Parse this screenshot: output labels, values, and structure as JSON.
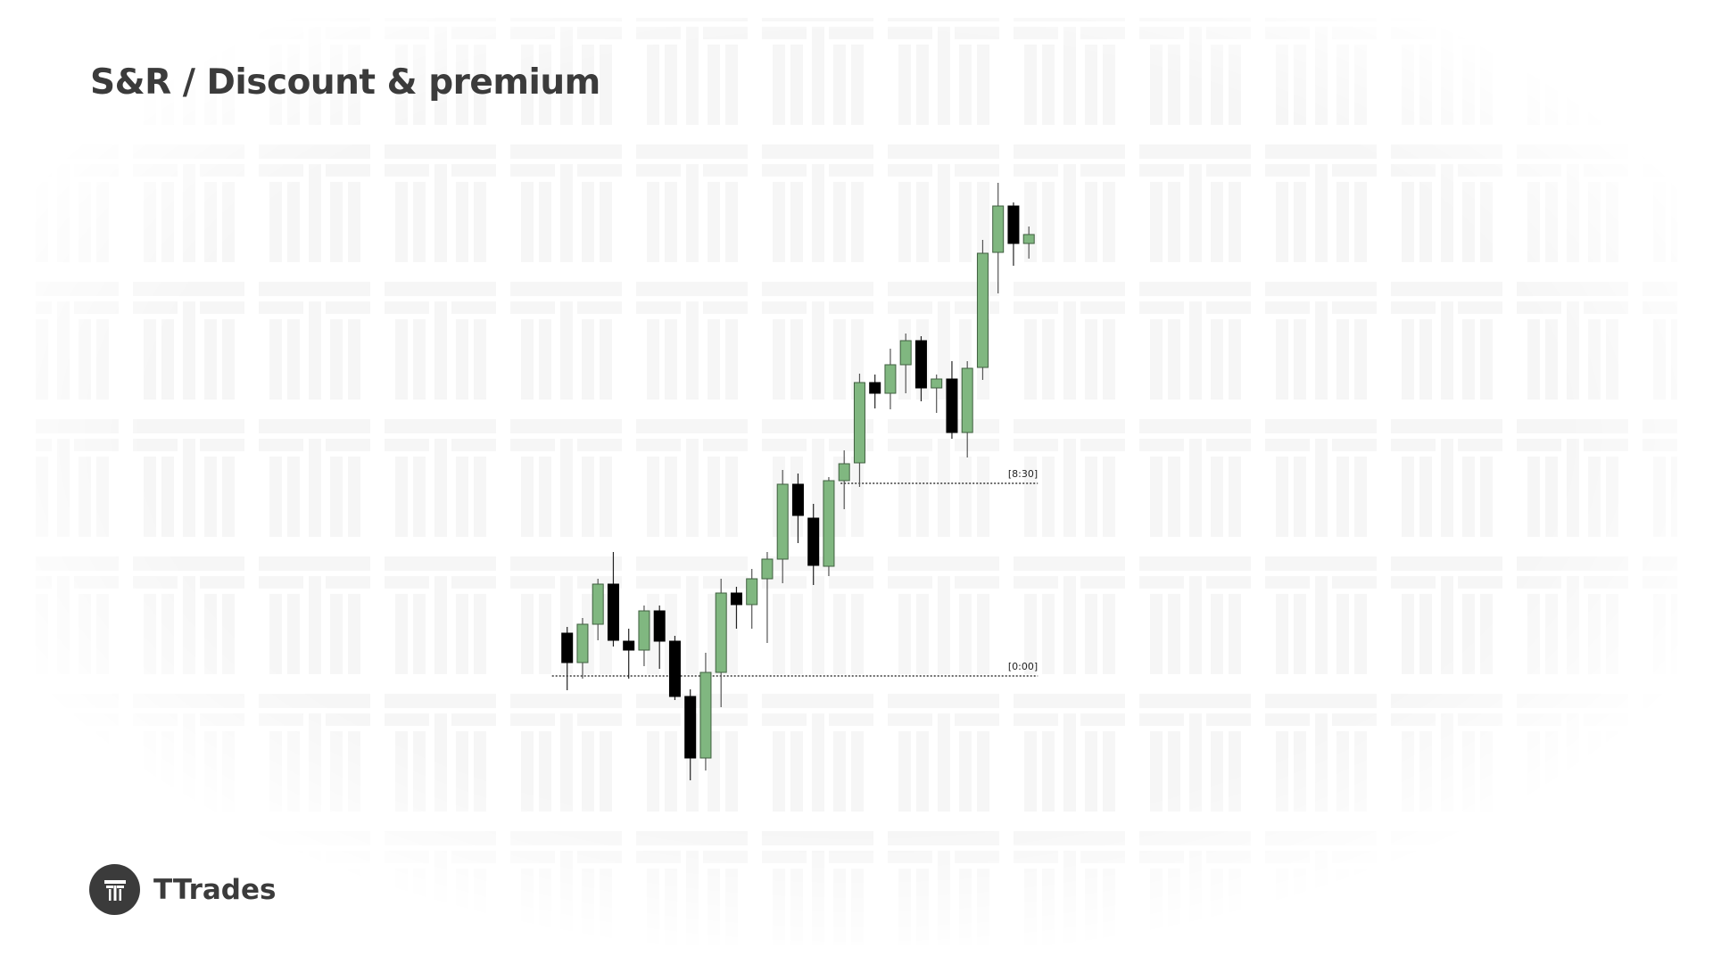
{
  "header": {
    "title": "S&R / Discount & premium"
  },
  "brand": {
    "name": "TTrades",
    "logo_icon": "tt-logo-icon"
  },
  "colors": {
    "bullish": "#80b780",
    "bullish_border": "#3f5f3f",
    "bearish": "#000000",
    "text": "#3b3b3b",
    "watermark": "#f6f6f6"
  },
  "chart_data": {
    "type": "candlestick",
    "title": "",
    "xlabel": "",
    "ylabel": "",
    "axes_visible": false,
    "grid": false,
    "candles": [
      {
        "o": 104.8,
        "h": 105.5,
        "l": 98.4,
        "c": 101.5
      },
      {
        "o": 101.5,
        "h": 106.5,
        "l": 99.7,
        "c": 105.8
      },
      {
        "o": 105.8,
        "h": 110.9,
        "l": 104.0,
        "c": 110.3
      },
      {
        "o": 110.3,
        "h": 113.9,
        "l": 103.3,
        "c": 104.0
      },
      {
        "o": 103.9,
        "h": 105.3,
        "l": 99.7,
        "c": 102.9
      },
      {
        "o": 102.9,
        "h": 107.9,
        "l": 101.1,
        "c": 107.3
      },
      {
        "o": 107.3,
        "h": 107.9,
        "l": 100.8,
        "c": 103.9
      },
      {
        "o": 103.9,
        "h": 104.5,
        "l": 97.3,
        "c": 97.7
      },
      {
        "o": 97.7,
        "h": 98.5,
        "l": 88.3,
        "c": 90.8
      },
      {
        "o": 90.8,
        "h": 102.6,
        "l": 89.4,
        "c": 100.4
      },
      {
        "o": 100.4,
        "h": 110.9,
        "l": 96.5,
        "c": 109.3
      },
      {
        "o": 109.3,
        "h": 110.0,
        "l": 105.3,
        "c": 108.0
      },
      {
        "o": 108.0,
        "h": 112.0,
        "l": 105.3,
        "c": 110.9
      },
      {
        "o": 110.9,
        "h": 113.9,
        "l": 103.7,
        "c": 113.1
      },
      {
        "o": 113.1,
        "h": 123.1,
        "l": 110.4,
        "c": 121.5
      },
      {
        "o": 121.5,
        "h": 122.7,
        "l": 114.9,
        "c": 118.0
      },
      {
        "o": 117.7,
        "h": 119.3,
        "l": 110.2,
        "c": 112.4
      },
      {
        "o": 112.3,
        "h": 122.3,
        "l": 111.2,
        "c": 121.9
      },
      {
        "o": 121.9,
        "h": 125.3,
        "l": 118.7,
        "c": 123.8
      },
      {
        "o": 123.9,
        "h": 133.9,
        "l": 121.2,
        "c": 132.9
      },
      {
        "o": 132.9,
        "h": 133.8,
        "l": 130.0,
        "c": 131.7
      },
      {
        "o": 131.7,
        "h": 136.7,
        "l": 129.9,
        "c": 134.9
      },
      {
        "o": 134.9,
        "h": 138.4,
        "l": 131.7,
        "c": 137.6
      },
      {
        "o": 137.6,
        "h": 138.1,
        "l": 130.8,
        "c": 132.3
      },
      {
        "o": 132.3,
        "h": 133.8,
        "l": 129.5,
        "c": 133.3
      },
      {
        "o": 133.3,
        "h": 135.3,
        "l": 126.6,
        "c": 127.3
      },
      {
        "o": 127.3,
        "h": 135.3,
        "l": 124.5,
        "c": 134.5
      },
      {
        "o": 134.6,
        "h": 148.9,
        "l": 133.2,
        "c": 147.4
      },
      {
        "o": 147.5,
        "h": 155.3,
        "l": 142.9,
        "c": 152.7
      },
      {
        "o": 152.7,
        "h": 153.1,
        "l": 146.0,
        "c": 148.5
      },
      {
        "o": 148.5,
        "h": 150.4,
        "l": 146.8,
        "c": 149.5
      }
    ],
    "levels": [
      {
        "label": "[0:00]",
        "price": 100.0,
        "start_candle": 0,
        "style": "dotted"
      },
      {
        "label": "[8:30]",
        "price": 121.6,
        "start_candle": 19,
        "style": "dotted"
      }
    ]
  }
}
